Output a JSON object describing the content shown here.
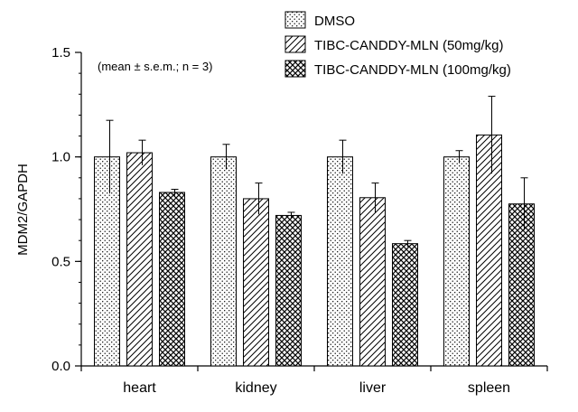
{
  "chart_data": {
    "type": "bar",
    "title": "",
    "xlabel": "",
    "ylabel": "MDM2/GAPDH",
    "ylim": [
      0,
      1.5
    ],
    "yticks": [
      "0.0",
      "0.5",
      "1.0",
      "1.5"
    ],
    "ytick_values": [
      0,
      0.5,
      1.0,
      1.5
    ],
    "annotation": "(mean ± s.e.m.; n = 3)",
    "categories": [
      "heart",
      "kidney",
      "liver",
      "spleen"
    ],
    "legend_position": "top-right",
    "grid": false,
    "series": [
      {
        "name": "DMSO",
        "pattern": "dots",
        "values": [
          1.0,
          1.0,
          1.0,
          1.0
        ],
        "errors": [
          0.175,
          0.06,
          0.08,
          0.03
        ]
      },
      {
        "name": "TIBC-CANDDY-MLN (50mg/kg)",
        "pattern": "diagonal",
        "values": [
          1.02,
          0.8,
          0.805,
          1.105
        ],
        "errors": [
          0.06,
          0.075,
          0.07,
          0.185
        ]
      },
      {
        "name": "TIBC-CANDDY-MLN (100mg/kg)",
        "pattern": "crosshatch",
        "values": [
          0.83,
          0.72,
          0.585,
          0.775
        ],
        "errors": [
          0.015,
          0.015,
          0.015,
          0.125
        ]
      }
    ]
  }
}
